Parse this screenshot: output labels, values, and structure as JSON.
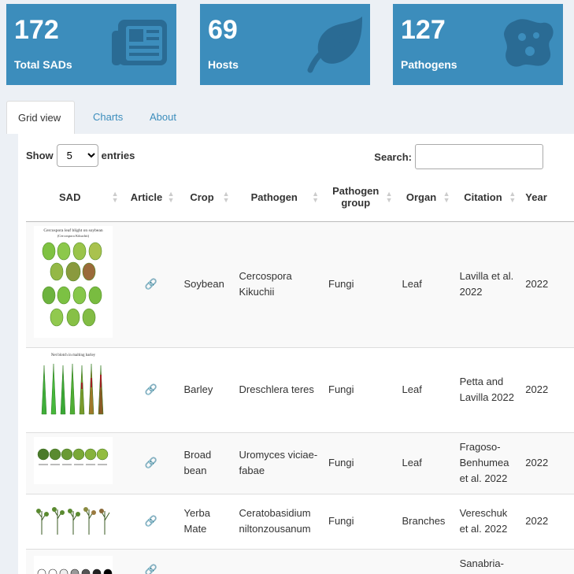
{
  "stats": [
    {
      "value": "172",
      "label": "Total SADs",
      "icon": "newspaper-icon"
    },
    {
      "value": "69",
      "label": "Hosts",
      "icon": "leaf-icon"
    },
    {
      "value": "127",
      "label": "Pathogens",
      "icon": "bacterium-icon"
    }
  ],
  "tabs": [
    "Grid view",
    "Charts",
    "About"
  ],
  "controls": {
    "show_label": "Show",
    "entries_label": "entries",
    "page_size": "5",
    "search_label": "Search:",
    "search_value": ""
  },
  "table": {
    "columns": [
      "SAD",
      "Article",
      "Crop",
      "Pathogen",
      "Pathogen group",
      "Organ",
      "Citation",
      "Year"
    ],
    "rows": [
      {
        "image_caption": "Cercospora leaf blight on soybean",
        "image_subcaption": "(Cercospora Kikuchii)",
        "crop": "Soybean",
        "pathogen": "Cercospora Kikuchii",
        "group": "Fungi",
        "organ": "Leaf",
        "citation": "Lavilla et al. 2022",
        "year": "2022"
      },
      {
        "image_caption": "Net blotch in malting barley",
        "crop": "Barley",
        "pathogen": "Dreschlera teres",
        "group": "Fungi",
        "organ": "Leaf",
        "citation": "Petta and Lavilla 2022",
        "year": "2022"
      },
      {
        "image_caption": "",
        "crop": "Broad bean",
        "pathogen": "Uromyces viciae-fabae",
        "group": "Fungi",
        "organ": "Leaf",
        "citation": "Fragoso-Benhumea et al. 2022",
        "year": "2022"
      },
      {
        "image_caption": "",
        "crop": "Yerba Mate",
        "pathogen": "Ceratobasidium niltonzousanum",
        "group": "Fungi",
        "organ": "Branches",
        "citation": "Vereschuk et al. 2022",
        "year": "2022"
      },
      {
        "image_caption": "",
        "crop": "",
        "pathogen": "",
        "group": "",
        "organ": "",
        "citation": "Sanabria-",
        "year": ""
      }
    ]
  },
  "colors": {
    "accent": "#3c8dbc",
    "box_icon": "#2a6b94",
    "leaf_green": "#6db33f"
  }
}
